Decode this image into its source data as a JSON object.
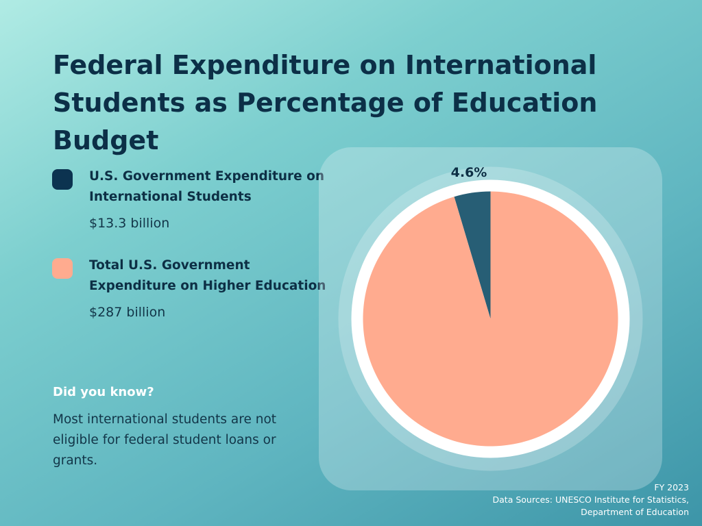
{
  "title": "Federal Expenditure on International Students as Percentage of Education Budget",
  "legend": [
    {
      "label": "U.S. Government Expenditure on International Students",
      "value": "$13.3 billion",
      "color": "#0c3350"
    },
    {
      "label": "Total U.S. Government Expenditure on Higher Education",
      "value": "$287 billion",
      "color": "#ffab8f"
    }
  ],
  "did_you_know": {
    "heading": "Did you know?",
    "text": "Most international students are not eligible for federal student loans or grants."
  },
  "footer": {
    "year": "FY 2023",
    "sources_line1": "Data Sources: UNESCO Institute for Statistics,",
    "sources_line2": "Department of Education"
  },
  "chart_data": {
    "type": "pie",
    "title": "Federal Expenditure on International Students as Percentage of Education Budget",
    "slices": [
      {
        "name": "U.S. Government Expenditure on International Students",
        "value": 13.3,
        "percent": 4.6,
        "label": "4.6%",
        "color": "#275e75"
      },
      {
        "name": "Total U.S. Government Expenditure on Higher Education",
        "value": 287,
        "percent": 95.4,
        "label": "",
        "color": "#ffab8f"
      }
    ]
  }
}
